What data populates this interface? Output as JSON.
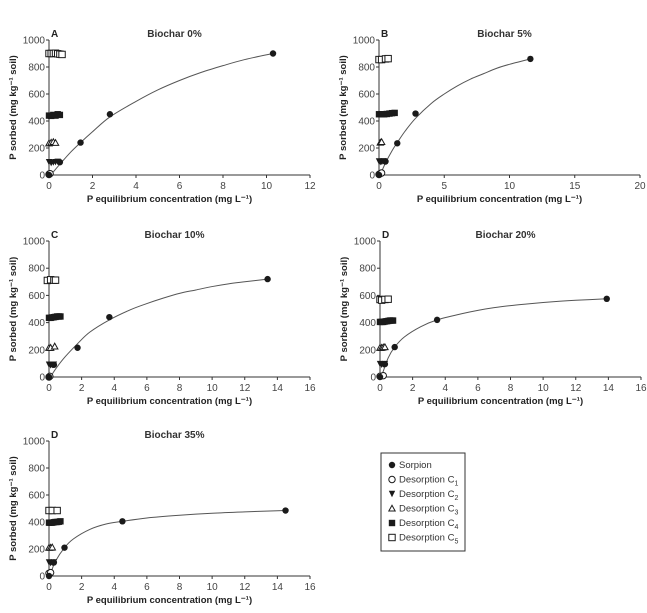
{
  "chart_data": [
    {
      "type": "scatter",
      "panel_letter": "A",
      "title": "Biochar 0%",
      "xlabel": "P equilibrium concentration (mg L⁻¹)",
      "ylabel": "P sorbed (mg kg⁻¹ soil)",
      "xlim": [
        0,
        12
      ],
      "ylim": [
        0,
        1000
      ],
      "xticks": [
        0,
        2,
        4,
        6,
        8,
        10,
        12
      ],
      "yticks": [
        0,
        200,
        400,
        600,
        800,
        1000
      ],
      "series": [
        {
          "name": "Sorpion",
          "marker": "filled-circle",
          "x": [
            0,
            0.5,
            1.45,
            2.8,
            10.3
          ],
          "y": [
            0,
            95,
            240,
            450,
            900
          ]
        },
        {
          "name": "Desorption C1",
          "marker": "open-circle",
          "x": [
            0,
            0.02,
            0.05
          ],
          "y": [
            5,
            8,
            10
          ]
        },
        {
          "name": "Desorption C2",
          "marker": "filled-triangle-down",
          "x": [
            0,
            0.1,
            0.2,
            0.3,
            0.4
          ],
          "y": [
            95,
            88,
            92,
            95,
            98
          ]
        },
        {
          "name": "Desorption C3",
          "marker": "open-triangle",
          "x": [
            0,
            0.1,
            0.2,
            0.3
          ],
          "y": [
            235,
            240,
            245,
            238
          ]
        },
        {
          "name": "Desorption C4",
          "marker": "filled-square",
          "x": [
            0,
            0.1,
            0.2,
            0.3,
            0.4,
            0.5
          ],
          "y": [
            440,
            438,
            445,
            440,
            450,
            445
          ]
        },
        {
          "name": "Desorption C5",
          "marker": "open-square",
          "x": [
            0,
            0.1,
            0.2,
            0.3,
            0.4,
            0.5,
            0.6
          ],
          "y": [
            900,
            900,
            900,
            902,
            898,
            895,
            893
          ]
        }
      ],
      "fit_curve": {
        "series": "Sorpion",
        "x": [
          0.1,
          0.5,
          1,
          1.45,
          2,
          2.8,
          4,
          5,
          6,
          7,
          8,
          9,
          10.3
        ],
        "y": [
          5,
          80,
          170,
          240,
          320,
          430,
          545,
          630,
          700,
          760,
          810,
          855,
          900
        ]
      }
    },
    {
      "type": "scatter",
      "panel_letter": "B",
      "title": "Biochar 5%",
      "xlabel": "P equilibrium concentration (mg L⁻¹)",
      "ylabel": "P sorbed (mg kg⁻¹ soil)",
      "xlim": [
        0,
        20
      ],
      "ylim": [
        0,
        1000
      ],
      "xticks": [
        0,
        5,
        10,
        15,
        20
      ],
      "yticks": [
        0,
        200,
        400,
        600,
        800,
        1000
      ],
      "series": [
        {
          "name": "Sorpion",
          "marker": "filled-circle",
          "x": [
            0,
            0.5,
            1.4,
            2.8,
            11.6
          ],
          "y": [
            0,
            100,
            235,
            455,
            860
          ]
        },
        {
          "name": "Desorption C1",
          "marker": "open-circle",
          "x": [
            0,
            0.1,
            0.2
          ],
          "y": [
            5,
            10,
            15
          ]
        },
        {
          "name": "Desorption C2",
          "marker": "filled-triangle-down",
          "x": [
            0,
            0.1,
            0.2,
            0.3,
            0.4
          ],
          "y": [
            100,
            95,
            98,
            100,
            100
          ]
        },
        {
          "name": "Desorption C3",
          "marker": "open-triangle",
          "x": [
            0.1,
            0.2
          ],
          "y": [
            240,
            245
          ]
        },
        {
          "name": "Desorption C4",
          "marker": "filled-square",
          "x": [
            0,
            0.2,
            0.4,
            0.6,
            0.8,
            1.0,
            1.2
          ],
          "y": [
            450,
            450,
            450,
            452,
            455,
            458,
            460
          ]
        },
        {
          "name": "Desorption C5",
          "marker": "open-square",
          "x": [
            0,
            0.2,
            0.5,
            0.7
          ],
          "y": [
            855,
            855,
            860,
            862
          ]
        }
      ],
      "fit_curve": {
        "series": "Sorpion",
        "x": [
          0.1,
          0.5,
          1,
          1.4,
          2,
          2.8,
          4,
          5,
          6,
          7,
          8,
          9,
          10,
          11.6
        ],
        "y": [
          5,
          90,
          180,
          240,
          325,
          420,
          530,
          600,
          660,
          710,
          750,
          790,
          820,
          860
        ]
      }
    },
    {
      "type": "scatter",
      "panel_letter": "C",
      "title": "Biochar 10%",
      "xlabel": "P equilibrium concentration (mg L⁻¹)",
      "ylabel": "P sorbed (mg kg⁻¹ soil)",
      "xlim": [
        0,
        16
      ],
      "ylim": [
        0,
        1000
      ],
      "xticks": [
        0,
        2,
        4,
        6,
        8,
        10,
        12,
        14,
        16
      ],
      "yticks": [
        0,
        200,
        400,
        600,
        800,
        1000
      ],
      "series": [
        {
          "name": "Sorpion",
          "marker": "filled-circle",
          "x": [
            0,
            0.3,
            1.75,
            3.7,
            13.4
          ],
          "y": [
            0,
            90,
            215,
            440,
            720
          ]
        },
        {
          "name": "Desorption C1",
          "marker": "open-circle",
          "x": [
            0,
            0.05
          ],
          "y": [
            0,
            5
          ]
        },
        {
          "name": "Desorption C2",
          "marker": "filled-triangle-down",
          "x": [
            0,
            0.1,
            0.2,
            0.3
          ],
          "y": [
            90,
            85,
            88,
            90
          ]
        },
        {
          "name": "Desorption C3",
          "marker": "open-triangle",
          "x": [
            0,
            0.1,
            0.35
          ],
          "y": [
            215,
            215,
            225
          ]
        },
        {
          "name": "Desorption C4",
          "marker": "filled-square",
          "x": [
            0,
            0.1,
            0.2,
            0.3,
            0.4,
            0.5,
            0.6,
            0.7
          ],
          "y": [
            435,
            435,
            438,
            440,
            442,
            445,
            445,
            445
          ]
        },
        {
          "name": "Desorption C5",
          "marker": "open-square",
          "x": [
            -0.1,
            0.1,
            0.3,
            0.4
          ],
          "y": [
            710,
            715,
            712,
            712
          ]
        }
      ],
      "fit_curve": {
        "series": "Sorpion",
        "x": [
          0.1,
          0.5,
          1,
          1.75,
          2.5,
          3.7,
          5,
          6,
          7,
          8,
          9,
          10,
          11,
          12,
          13.4
        ],
        "y": [
          5,
          75,
          150,
          245,
          330,
          420,
          495,
          540,
          580,
          615,
          640,
          665,
          685,
          700,
          720
        ]
      }
    },
    {
      "type": "scatter",
      "panel_letter": "D",
      "title": "Biochar 20%",
      "xlabel": "P equilibrium concentration (mg L⁻¹)",
      "ylabel": "P sorbed (mg kg⁻¹ soil)",
      "xlim": [
        0,
        16
      ],
      "ylim": [
        0,
        1000
      ],
      "xticks": [
        0,
        2,
        4,
        6,
        8,
        10,
        12,
        14,
        16
      ],
      "yticks": [
        0,
        200,
        400,
        600,
        800,
        1000
      ],
      "series": [
        {
          "name": "Sorpion",
          "marker": "filled-circle",
          "x": [
            0,
            0.3,
            0.9,
            3.5,
            13.9
          ],
          "y": [
            0,
            95,
            220,
            420,
            575
          ]
        },
        {
          "name": "Desorption C1",
          "marker": "open-circle",
          "x": [
            0,
            0.2
          ],
          "y": [
            5,
            10
          ]
        },
        {
          "name": "Desorption C2",
          "marker": "filled-triangle-down",
          "x": [
            0,
            0.1,
            0.2,
            0.3
          ],
          "y": [
            95,
            90,
            92,
            95
          ]
        },
        {
          "name": "Desorption C3",
          "marker": "open-triangle",
          "x": [
            0,
            0.1,
            0.2,
            0.3
          ],
          "y": [
            215,
            215,
            218,
            220
          ]
        },
        {
          "name": "Desorption C4",
          "marker": "filled-square",
          "x": [
            0,
            0.1,
            0.2,
            0.3,
            0.4,
            0.5,
            0.6,
            0.7,
            0.8
          ],
          "y": [
            405,
            405,
            405,
            408,
            410,
            412,
            415,
            415,
            415
          ]
        },
        {
          "name": "Desorption C5",
          "marker": "open-square",
          "x": [
            0,
            0.1,
            0.3,
            0.5
          ],
          "y": [
            570,
            565,
            570,
            572
          ]
        }
      ],
      "fit_curve": {
        "series": "Sorpion",
        "x": [
          0.1,
          0.5,
          0.9,
          1.5,
          2.5,
          3.5,
          5,
          6,
          7,
          8,
          9,
          10,
          11,
          12,
          13.9
        ],
        "y": [
          10,
          140,
          220,
          295,
          370,
          420,
          465,
          490,
          510,
          525,
          537,
          548,
          557,
          564,
          575
        ]
      }
    },
    {
      "type": "scatter",
      "panel_letter": "D",
      "title": "Biochar 35%",
      "xlabel": "P equilibrium concentration (mg L⁻¹)",
      "ylabel": "P sorbed (mg kg⁻¹ soil)",
      "xlim": [
        0,
        16
      ],
      "ylim": [
        0,
        1000
      ],
      "xticks": [
        0,
        2,
        4,
        6,
        8,
        10,
        12,
        14,
        16
      ],
      "yticks": [
        0,
        200,
        400,
        600,
        800,
        1000
      ],
      "series": [
        {
          "name": "Sorpion",
          "marker": "filled-circle",
          "x": [
            0,
            0.3,
            0.95,
            4.5,
            14.5
          ],
          "y": [
            0,
            100,
            210,
            405,
            485
          ]
        },
        {
          "name": "Desorption C1",
          "marker": "open-circle",
          "x": [
            0,
            0.1
          ],
          "y": [
            20,
            25
          ]
        },
        {
          "name": "Desorption C2",
          "marker": "filled-triangle-down",
          "x": [
            0,
            0.1,
            0.2,
            0.3
          ],
          "y": [
            100,
            95,
            98,
            100
          ]
        },
        {
          "name": "Desorption C3",
          "marker": "open-triangle",
          "x": [
            0,
            0.1,
            0.2
          ],
          "y": [
            210,
            210,
            212
          ]
        },
        {
          "name": "Desorption C4",
          "marker": "filled-square",
          "x": [
            0,
            0.1,
            0.2,
            0.3,
            0.4,
            0.5,
            0.6,
            0.7
          ],
          "y": [
            395,
            395,
            395,
            398,
            400,
            400,
            402,
            405
          ]
        },
        {
          "name": "Desorption C5",
          "marker": "open-square",
          "x": [
            0,
            0.2,
            0.5
          ],
          "y": [
            485,
            485,
            485
          ]
        }
      ],
      "fit_curve": {
        "series": "Sorpion",
        "x": [
          0.1,
          0.4,
          0.95,
          1.5,
          2.5,
          3.5,
          4.5,
          6,
          8,
          10,
          12,
          14.5
        ],
        "y": [
          20,
          110,
          210,
          275,
          345,
          385,
          405,
          430,
          450,
          465,
          475,
          485
        ]
      }
    }
  ],
  "legend": {
    "placement": "bottom-right",
    "items": [
      {
        "label": "Sorpion",
        "marker": "filled-circle"
      },
      {
        "label": "Desorption C",
        "sub": "1",
        "marker": "open-circle"
      },
      {
        "label": "Desorption C",
        "sub": "2",
        "marker": "filled-triangle-down"
      },
      {
        "label": "Desorption C",
        "sub": "3",
        "marker": "open-triangle"
      },
      {
        "label": "Desorption C",
        "sub": "4",
        "marker": "filled-square"
      },
      {
        "label": "Desorption C",
        "sub": "5",
        "marker": "open-square"
      }
    ]
  },
  "colors": {
    "marker": "#1a1a1a",
    "axis": "#333333",
    "curve": "#555555"
  }
}
